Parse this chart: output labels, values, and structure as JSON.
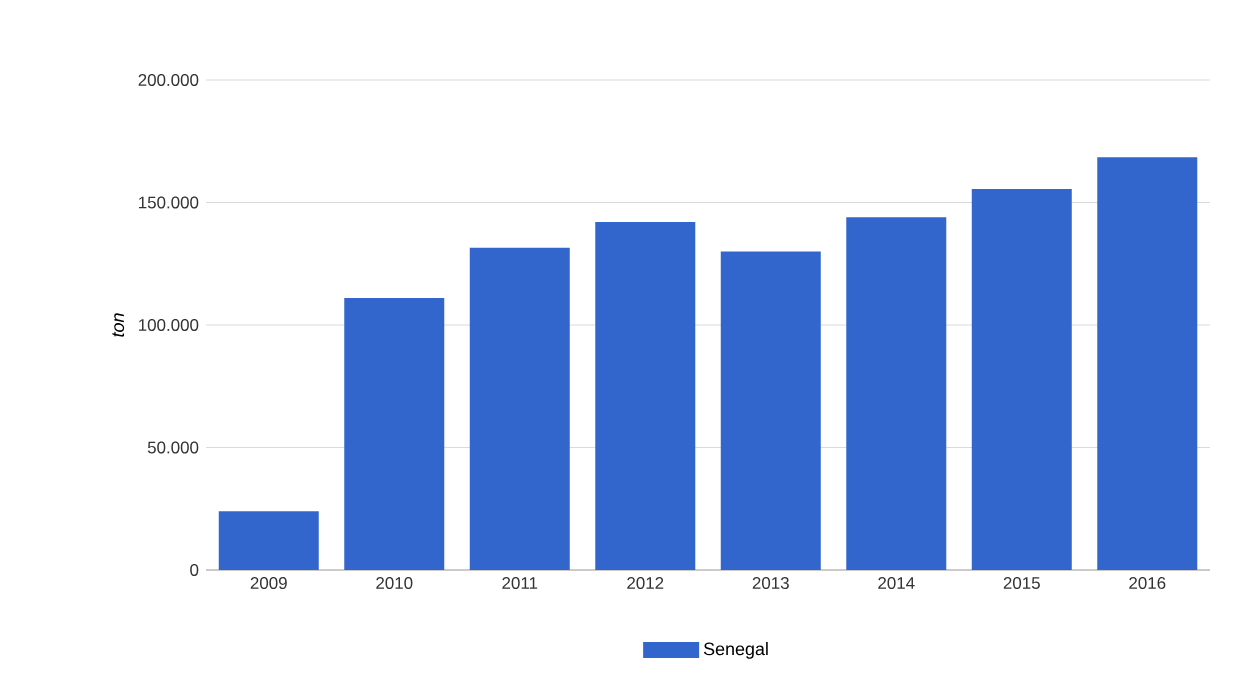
{
  "chart_data": {
    "type": "bar",
    "ylabel": "ton",
    "categories": [
      "2009",
      "2010",
      "2011",
      "2012",
      "2013",
      "2014",
      "2015",
      "2016"
    ],
    "series": [
      {
        "name": "Senegal",
        "color": "#3366cc",
        "values": [
          24000,
          111000,
          131500,
          142000,
          130000,
          144000,
          155500,
          168500
        ]
      }
    ],
    "ylim": [
      0,
      200000
    ],
    "yticks": [
      {
        "value": 0,
        "label": "0"
      },
      {
        "value": 50000,
        "label": "50.000"
      },
      {
        "value": 100000,
        "label": "100.000"
      },
      {
        "value": 150000,
        "label": "150.000"
      },
      {
        "value": 200000,
        "label": "200.000"
      }
    ],
    "grid": "y",
    "legend": "bottom"
  }
}
